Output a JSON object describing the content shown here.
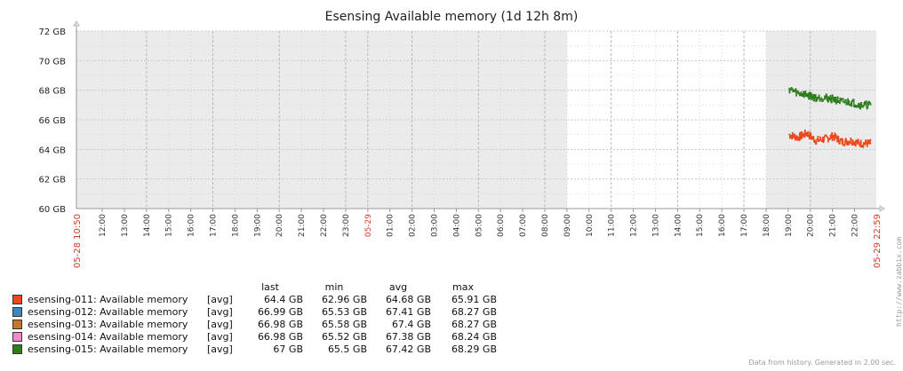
{
  "chart_data": {
    "type": "line",
    "title": "Esensing Available memory (1d 12h 8m)",
    "ylim": [
      60,
      72
    ],
    "y_ticks": [
      "60 GB",
      "62 GB",
      "64 GB",
      "66 GB",
      "68 GB",
      "70 GB",
      "72 GB"
    ],
    "y_tick_values": [
      60,
      62,
      64,
      66,
      68,
      70,
      72
    ],
    "x_start_label": "05-28 10:50",
    "x_end_label": "05-29 22:59",
    "x_day_label": "05-29",
    "x_hour_labels": [
      "12:00",
      "13:00",
      "14:00",
      "15:00",
      "16:00",
      "17:00",
      "18:00",
      "19:00",
      "20:00",
      "21:00",
      "22:00",
      "23:00",
      "05-29",
      "01:00",
      "02:00",
      "03:00",
      "04:00",
      "05:00",
      "06:00",
      "07:00",
      "08:00",
      "09:00",
      "10:00",
      "11:00",
      "12:00",
      "13:00",
      "14:00",
      "15:00",
      "16:00",
      "17:00",
      "18:00",
      "19:00",
      "20:00",
      "21:00",
      "22:00"
    ],
    "x_range_hours": [
      0,
      36.15
    ],
    "shaded_hour_ranges": [
      [
        0,
        22.17
      ],
      [
        31.17,
        36.15
      ]
    ],
    "grid": true,
    "legend_position": "bottom-left",
    "series": [
      {
        "name": "esensing-011: Available memory",
        "color": "#E8491D",
        "func": "[avg]",
        "last": "64.4 GB",
        "min": "62.96 GB",
        "avg": "64.68 GB",
        "max": "65.91 GB",
        "x": [
          32.2,
          32.6,
          33.0,
          33.4,
          33.8,
          34.2,
          34.6,
          35.0,
          35.4,
          35.9
        ],
        "y": [
          65.0,
          64.8,
          65.1,
          64.6,
          64.7,
          64.9,
          64.5,
          64.6,
          64.4,
          64.4
        ]
      },
      {
        "name": "esensing-012: Available memory",
        "color": "#3C89C0",
        "func": "[avg]",
        "last": "66.99 GB",
        "min": "65.53 GB",
        "avg": "67.41 GB",
        "max": "68.27 GB",
        "x": [],
        "y": []
      },
      {
        "name": "esensing-013: Available memory",
        "color": "#C8742A",
        "func": "[avg]",
        "last": "66.98 GB",
        "min": "65.58 GB",
        "avg": "67.4 GB",
        "max": "68.27 GB",
        "x": [],
        "y": []
      },
      {
        "name": "esensing-014: Available memory",
        "color": "#F489C7",
        "func": "[avg]",
        "last": "66.98 GB",
        "min": "65.52 GB",
        "avg": "67.38 GB",
        "max": "68.24 GB",
        "x": [],
        "y": []
      },
      {
        "name": "esensing-015: Available memory",
        "color": "#2E7D1E",
        "func": "[avg]",
        "last": "67 GB",
        "min": "65.5 GB",
        "avg": "67.42 GB",
        "max": "68.29 GB",
        "x": [
          32.2,
          32.6,
          33.0,
          33.4,
          33.8,
          34.2,
          34.6,
          35.0,
          35.4,
          35.9
        ],
        "y": [
          68.1,
          67.8,
          67.7,
          67.5,
          67.5,
          67.4,
          67.2,
          67.2,
          67.0,
          67.0
        ]
      }
    ]
  },
  "legend": {
    "headers": {
      "last": "last",
      "min": "min",
      "avg": "avg",
      "max": "max"
    }
  },
  "watermark": "http://www.zabbix.com",
  "footer": "Data from history. Generated in 2.00 sec."
}
